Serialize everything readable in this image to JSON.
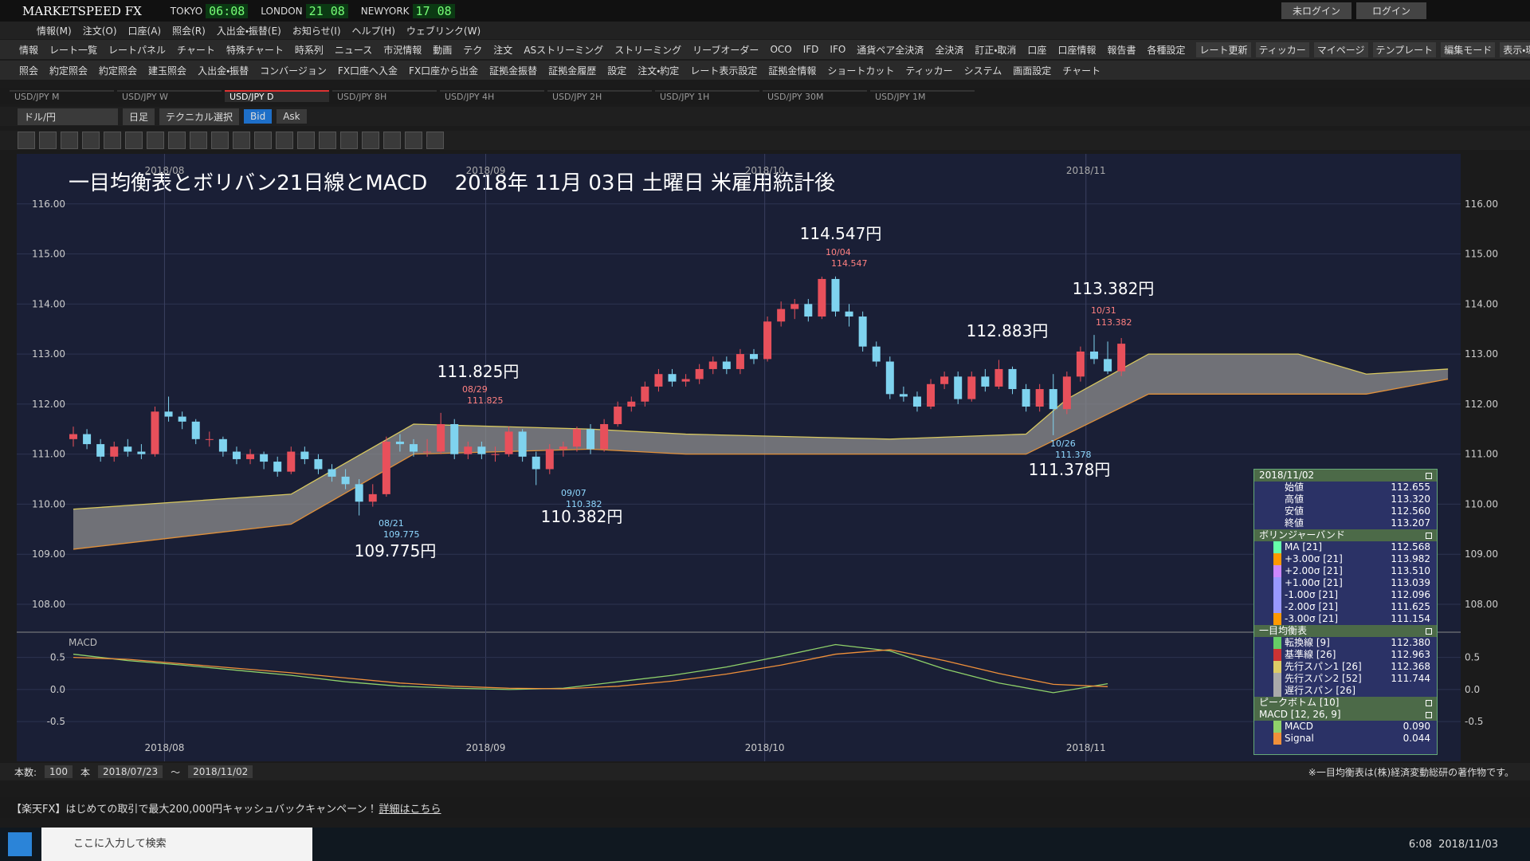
{
  "app": {
    "brand": "MARKETSPEED FX",
    "clocks": [
      {
        "city": "TOKYO",
        "time": "06:08"
      },
      {
        "city": "LONDON",
        "time": "21 08"
      },
      {
        "city": "NEWYORK",
        "time": "17 08"
      }
    ],
    "login_status": "未ログイン",
    "login_button": "ログイン",
    "menu": [
      "情報(M)",
      "注文(O)",
      "口座(A)",
      "照会(R)",
      "入出金・振替(E)",
      "お知らせ(I)",
      "ヘルプ(H)",
      "ウェブリンク(W)"
    ],
    "toolbar1": [
      "情報",
      "レート一覧",
      "レートパネル",
      "チャート",
      "特殊チャート",
      "時系列",
      "ニュース",
      "市況情報",
      "動画",
      "テク",
      "注文",
      "ASストリーミング",
      "ストリーミング",
      "リーブオーダー",
      "OCO",
      "IFD",
      "IFO",
      "通貨ペア全決済",
      "全決済",
      "訂正・取消",
      "口座",
      "口座情報",
      "報告書",
      "各種設定"
    ],
    "toolbar1_right": [
      "レート更新",
      "ティッカー",
      "マイページ",
      "テンプレート",
      "編集モード",
      "表示・環境設定"
    ],
    "toolbar2": [
      "照会",
      "約定照会",
      "約定照会",
      "建玉照会",
      "入出金・振替",
      "コンバージョン",
      "FX口座へ入金",
      "FX口座から出金",
      "証拠金振替",
      "証拠金履歴",
      "設定",
      "注文・約定",
      "レート表示設定",
      "証拠金情報",
      "ショートカット",
      "ティッカー",
      "システム",
      "画面設定",
      "チャート"
    ],
    "tabs": [
      "USD/JPY M",
      "USD/JPY W",
      "USD/JPY D",
      "USD/JPY 8H",
      "USD/JPY 4H",
      "USD/JPY 2H",
      "USD/JPY 1H",
      "USD/JPY 30M",
      "USD/JPY 1M"
    ],
    "chart_toolbar": [
      "ドル/円",
      "日足",
      "テクニカル選択",
      "Bid",
      "Ask"
    ],
    "bottom": {
      "count_label": "本数:",
      "count": "100",
      "unit": "本",
      "from": "2018/07/23",
      "tilde": "～",
      "to": "2018/11/02",
      "note": "※一目均衡表は(株)経済変動総研の著作物です。"
    },
    "banner": {
      "text": "【楽天FX】はじめての取引で最大200,000円キャッシュバックキャンペーン！",
      "link": "詳細はこちら"
    },
    "taskbar": {
      "search": "ここに入力して検索",
      "time": "6:08",
      "date": "2018/11/03"
    }
  },
  "chart_data": {
    "type": "candlestick",
    "title": "一目均衡表とボリバン21日線とMACD　 2018年 11月 03日 土曜日 米雇用統計後",
    "candles": [
      [
        111.3,
        111.55,
        111.15,
        111.4
      ],
      [
        111.4,
        111.5,
        111.1,
        111.2
      ],
      [
        111.2,
        111.3,
        110.85,
        110.95
      ],
      [
        110.95,
        111.25,
        110.85,
        111.15
      ],
      [
        111.15,
        111.3,
        110.95,
        111.05
      ],
      [
        111.05,
        111.2,
        110.9,
        111.0
      ],
      [
        111.0,
        111.95,
        110.95,
        111.85
      ],
      [
        111.85,
        112.15,
        111.65,
        111.75
      ],
      [
        111.75,
        111.85,
        111.5,
        111.65
      ],
      [
        111.65,
        111.7,
        111.2,
        111.3
      ],
      [
        111.3,
        111.45,
        111.15,
        111.3
      ],
      [
        111.3,
        111.35,
        110.95,
        111.05
      ],
      [
        111.05,
        111.15,
        110.8,
        110.9
      ],
      [
        110.9,
        111.1,
        110.8,
        111.0
      ],
      [
        111.0,
        111.05,
        110.7,
        110.85
      ],
      [
        110.85,
        110.95,
        110.55,
        110.65
      ],
      [
        110.65,
        111.15,
        110.6,
        111.05
      ],
      [
        111.05,
        111.15,
        110.8,
        110.9
      ],
      [
        110.9,
        111.0,
        110.6,
        110.7
      ],
      [
        110.7,
        110.8,
        110.45,
        110.55
      ],
      [
        110.55,
        110.7,
        110.3,
        110.4
      ],
      [
        110.4,
        110.5,
        109.775,
        110.05
      ],
      [
        110.05,
        110.4,
        109.95,
        110.2
      ],
      [
        110.2,
        111.35,
        110.15,
        111.25
      ],
      [
        111.25,
        111.4,
        111.05,
        111.2
      ],
      [
        111.2,
        111.3,
        110.95,
        111.05
      ],
      [
        111.05,
        111.3,
        110.95,
        111.05
      ],
      [
        111.05,
        111.825,
        111.0,
        111.6
      ],
      [
        111.6,
        111.7,
        110.9,
        111.0
      ],
      [
        111.0,
        111.25,
        110.9,
        111.15
      ],
      [
        111.15,
        111.25,
        110.9,
        111.0
      ],
      [
        111.0,
        111.15,
        110.85,
        111.0
      ],
      [
        111.0,
        111.55,
        110.95,
        111.45
      ],
      [
        111.45,
        111.5,
        110.85,
        110.95
      ],
      [
        110.95,
        111.05,
        110.382,
        110.7
      ],
      [
        110.7,
        111.2,
        110.6,
        111.1
      ],
      [
        111.1,
        111.25,
        110.95,
        111.15
      ],
      [
        111.15,
        111.55,
        111.05,
        111.5
      ],
      [
        111.5,
        111.6,
        111.0,
        111.1
      ],
      [
        111.1,
        111.7,
        111.05,
        111.6
      ],
      [
        111.6,
        112.05,
        111.55,
        111.95
      ],
      [
        111.95,
        112.15,
        111.85,
        112.05
      ],
      [
        112.05,
        112.45,
        111.95,
        112.35
      ],
      [
        112.35,
        112.7,
        112.25,
        112.6
      ],
      [
        112.6,
        112.7,
        112.35,
        112.45
      ],
      [
        112.45,
        112.6,
        112.35,
        112.5
      ],
      [
        112.5,
        112.8,
        112.4,
        112.7
      ],
      [
        112.7,
        112.95,
        112.6,
        112.85
      ],
      [
        112.85,
        112.95,
        112.6,
        112.7
      ],
      [
        112.7,
        113.1,
        112.6,
        113.0
      ],
      [
        113.0,
        113.1,
        112.8,
        112.9
      ],
      [
        112.9,
        113.75,
        112.85,
        113.65
      ],
      [
        113.65,
        114.05,
        113.55,
        113.9
      ],
      [
        113.9,
        114.1,
        113.7,
        114.0
      ],
      [
        114.0,
        114.1,
        113.65,
        113.75
      ],
      [
        113.75,
        114.547,
        113.7,
        114.5
      ],
      [
        114.5,
        114.55,
        113.75,
        113.85
      ],
      [
        113.85,
        114.0,
        113.55,
        113.75
      ],
      [
        113.75,
        113.85,
        113.05,
        113.15
      ],
      [
        113.15,
        113.25,
        112.75,
        112.85
      ],
      [
        112.85,
        112.95,
        112.1,
        112.2
      ],
      [
        112.2,
        112.35,
        112.05,
        112.15
      ],
      [
        112.15,
        112.25,
        111.85,
        111.95
      ],
      [
        111.95,
        112.5,
        111.9,
        112.4
      ],
      [
        112.4,
        112.65,
        112.3,
        112.55
      ],
      [
        112.55,
        112.65,
        112.0,
        112.1
      ],
      [
        112.1,
        112.65,
        112.05,
        112.55
      ],
      [
        112.55,
        112.7,
        112.25,
        112.35
      ],
      [
        112.35,
        112.883,
        112.3,
        112.7
      ],
      [
        112.7,
        112.75,
        112.2,
        112.3
      ],
      [
        112.3,
        112.4,
        111.85,
        111.95
      ],
      [
        111.95,
        112.4,
        111.85,
        112.3
      ],
      [
        112.3,
        112.6,
        111.378,
        111.9
      ],
      [
        111.9,
        112.65,
        111.8,
        112.55
      ],
      [
        112.55,
        113.15,
        112.45,
        113.05
      ],
      [
        113.05,
        113.382,
        112.8,
        112.9
      ],
      [
        112.9,
        113.25,
        112.6,
        112.655
      ],
      [
        112.655,
        113.32,
        112.56,
        113.207
      ]
    ],
    "up_color": "#e8505b",
    "down_color": "#7fd3ef",
    "ylim": [
      107.49,
      117.0
    ],
    "yticks": [
      {
        "value": 108,
        "label": "108.00"
      },
      {
        "value": 109,
        "label": "109.00"
      },
      {
        "value": 110,
        "label": "110.00"
      },
      {
        "value": 111,
        "label": "111.00"
      },
      {
        "value": 112,
        "label": "112.00"
      },
      {
        "value": 113,
        "label": "113.00"
      },
      {
        "value": 114,
        "label": "114.00"
      },
      {
        "value": 115,
        "label": "115.00"
      },
      {
        "value": 116,
        "label": "116.00"
      }
    ],
    "xticks": [
      {
        "value": 6.7,
        "label": "2018/08"
      },
      {
        "value": 30.3,
        "label": "2018/09"
      },
      {
        "value": 50.8,
        "label": "2018/10"
      },
      {
        "value": 74.4,
        "label": "2018/11"
      }
    ],
    "cloud": {
      "x": [
        0,
        16,
        25,
        38,
        45,
        60,
        70,
        73,
        79,
        90,
        95,
        101
      ],
      "span1": [
        109.9,
        110.2,
        111.6,
        111.5,
        111.4,
        111.3,
        111.4,
        112.1,
        113.0,
        113.0,
        112.6,
        112.7
      ],
      "span2": [
        109.1,
        109.6,
        111.0,
        111.1,
        111.0,
        111.0,
        111.0,
        111.4,
        112.2,
        112.2,
        112.2,
        112.5
      ],
      "color": "#8e8e8e"
    },
    "annotations": [
      {
        "price": "114.547円",
        "date": "10/04",
        "value": "114.547"
      },
      {
        "price": "113.382円",
        "date": "10/31",
        "value": "113.382"
      },
      {
        "price": "112.883円"
      },
      {
        "price": "111.825円",
        "date": "08/29",
        "value": "111.825"
      },
      {
        "price": "110.382円",
        "date": "09/07",
        "value": "110.382"
      },
      {
        "price": "109.775円",
        "date": "08/21",
        "value": "109.775"
      },
      {
        "price": "111.378円",
        "date": "10/26",
        "value": "111.378"
      }
    ],
    "macd": {
      "label": "MACD",
      "x": [
        0,
        4,
        8,
        12,
        16,
        20,
        24,
        28,
        32,
        36,
        40,
        44,
        48,
        52,
        56,
        60,
        64,
        68,
        72,
        76
      ],
      "series": [
        {
          "name": "MACD",
          "color": "#8fd16a",
          "values": [
            0.55,
            0.45,
            0.38,
            0.3,
            0.22,
            0.12,
            0.05,
            0.02,
            0.0,
            0.02,
            0.12,
            0.22,
            0.35,
            0.52,
            0.7,
            0.6,
            0.32,
            0.1,
            -0.05,
            0.09
          ]
        },
        {
          "name": "Signal",
          "color": "#f0903a",
          "values": [
            0.5,
            0.47,
            0.4,
            0.33,
            0.26,
            0.18,
            0.1,
            0.05,
            0.02,
            0.01,
            0.05,
            0.13,
            0.24,
            0.38,
            0.55,
            0.62,
            0.45,
            0.25,
            0.08,
            0.044
          ]
        }
      ],
      "ylim": [
        -1.12,
        0.88
      ],
      "yticks": [
        0.5,
        {
          "value": 0,
          "label": "0.0"
        },
        -0.5
      ]
    }
  },
  "info_panel": [
    {
      "title": "2018/11/02",
      "rows": [
        {
          "label": "始値",
          "value": "112.655"
        },
        {
          "label": "高値",
          "value": "113.320"
        },
        {
          "label": "安値",
          "value": "112.560"
        },
        {
          "label": "終値",
          "value": "113.207"
        }
      ]
    },
    {
      "title": "ボリンジャーバンド",
      "rows": [
        {
          "label": "MA [21]",
          "value": "112.568"
        },
        {
          "label": "+3.00σ [21]",
          "value": "113.982"
        },
        {
          "label": "+2.00σ [21]",
          "value": "113.510"
        },
        {
          "label": "+1.00σ [21]",
          "value": "113.039"
        },
        {
          "label": "-1.00σ [21]",
          "value": "112.096"
        },
        {
          "label": "-2.00σ [21]",
          "value": "111.625"
        },
        {
          "label": "-3.00σ [21]",
          "value": "111.154"
        }
      ]
    },
    {
      "title": "一目均衡表",
      "rows": [
        {
          "label": "転換線 [9]",
          "value": "112.380"
        },
        {
          "label": "基準線 [26]",
          "value": "112.963"
        },
        {
          "label": "先行スパン1 [26]",
          "value": "112.368"
        },
        {
          "label": "先行スパン2 [52]",
          "value": "111.744"
        },
        {
          "label": "遅行スパン [26]"
        }
      ]
    },
    {
      "title": "ピークボトム [10]",
      "rows": []
    },
    {
      "title": "MACD [12, 26, 9]",
      "rows": [
        {
          "label": "MACD",
          "value": "0.090"
        },
        {
          "label": "Signal",
          "value": "0.044"
        }
      ]
    }
  ]
}
